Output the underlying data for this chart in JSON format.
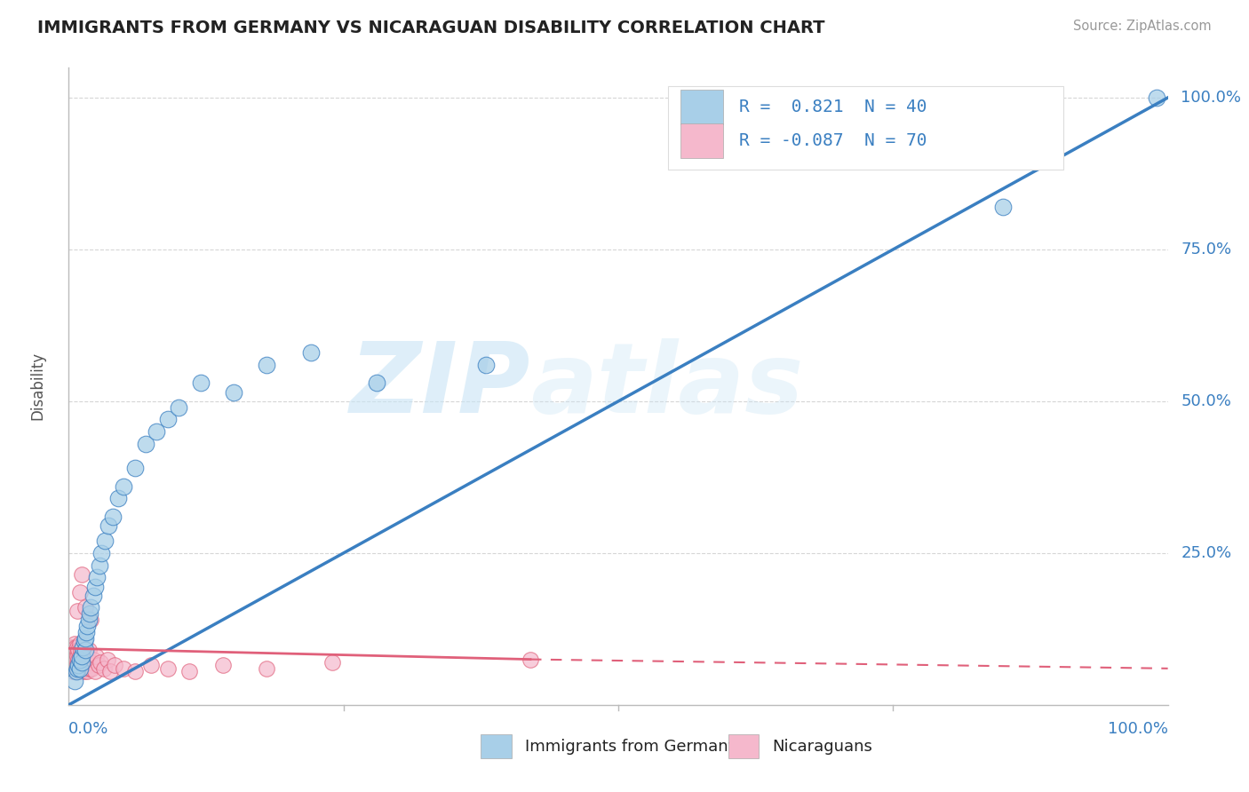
{
  "title": "IMMIGRANTS FROM GERMANY VS NICARAGUAN DISABILITY CORRELATION CHART",
  "source": "Source: ZipAtlas.com",
  "ylabel": "Disability",
  "right_yticklabels": [
    "25.0%",
    "50.0%",
    "75.0%",
    "100.0%"
  ],
  "right_yticks": [
    0.25,
    0.5,
    0.75,
    1.0
  ],
  "legend_blue_r": "0.821",
  "legend_blue_n": "40",
  "legend_pink_r": "-0.087",
  "legend_pink_n": "70",
  "legend_blue_label": "Immigrants from Germany",
  "legend_pink_label": "Nicaraguans",
  "watermark_zip": "ZIP",
  "watermark_atlas": "atlas",
  "blue_color": "#a8cfe8",
  "pink_color": "#f5b8cc",
  "blue_line_color": "#3a7fc1",
  "pink_line_color": "#e0607a",
  "background_color": "#ffffff",
  "blue_scatter_x": [
    0.005,
    0.007,
    0.008,
    0.009,
    0.01,
    0.01,
    0.012,
    0.012,
    0.013,
    0.014,
    0.015,
    0.015,
    0.016,
    0.017,
    0.018,
    0.019,
    0.02,
    0.022,
    0.024,
    0.026,
    0.028,
    0.03,
    0.033,
    0.036,
    0.04,
    0.045,
    0.05,
    0.06,
    0.07,
    0.08,
    0.09,
    0.1,
    0.12,
    0.15,
    0.18,
    0.22,
    0.28,
    0.38,
    0.85,
    0.99
  ],
  "blue_scatter_y": [
    0.04,
    0.055,
    0.06,
    0.065,
    0.06,
    0.075,
    0.07,
    0.08,
    0.095,
    0.105,
    0.09,
    0.11,
    0.12,
    0.13,
    0.14,
    0.15,
    0.16,
    0.18,
    0.195,
    0.21,
    0.23,
    0.25,
    0.27,
    0.295,
    0.31,
    0.34,
    0.36,
    0.39,
    0.43,
    0.45,
    0.47,
    0.49,
    0.53,
    0.515,
    0.56,
    0.58,
    0.53,
    0.56,
    0.82,
    1.0
  ],
  "pink_scatter_x": [
    0.001,
    0.002,
    0.002,
    0.003,
    0.003,
    0.003,
    0.004,
    0.004,
    0.004,
    0.005,
    0.005,
    0.005,
    0.006,
    0.006,
    0.006,
    0.007,
    0.007,
    0.007,
    0.008,
    0.008,
    0.008,
    0.009,
    0.009,
    0.009,
    0.01,
    0.01,
    0.01,
    0.011,
    0.011,
    0.011,
    0.012,
    0.012,
    0.013,
    0.013,
    0.014,
    0.014,
    0.015,
    0.015,
    0.016,
    0.016,
    0.017,
    0.017,
    0.018,
    0.018,
    0.019,
    0.02,
    0.021,
    0.022,
    0.024,
    0.025,
    0.027,
    0.029,
    0.032,
    0.035,
    0.038,
    0.042,
    0.05,
    0.06,
    0.075,
    0.09,
    0.11,
    0.14,
    0.18,
    0.24,
    0.42,
    0.008,
    0.01,
    0.012,
    0.015,
    0.02
  ],
  "pink_scatter_y": [
    0.075,
    0.06,
    0.085,
    0.065,
    0.08,
    0.095,
    0.055,
    0.075,
    0.09,
    0.06,
    0.075,
    0.1,
    0.065,
    0.08,
    0.095,
    0.055,
    0.075,
    0.09,
    0.065,
    0.08,
    0.095,
    0.06,
    0.075,
    0.09,
    0.065,
    0.08,
    0.1,
    0.055,
    0.075,
    0.09,
    0.065,
    0.08,
    0.06,
    0.075,
    0.055,
    0.08,
    0.065,
    0.09,
    0.06,
    0.075,
    0.055,
    0.08,
    0.065,
    0.09,
    0.06,
    0.07,
    0.06,
    0.075,
    0.055,
    0.08,
    0.065,
    0.07,
    0.06,
    0.075,
    0.055,
    0.065,
    0.06,
    0.055,
    0.065,
    0.06,
    0.055,
    0.065,
    0.06,
    0.07,
    0.075,
    0.155,
    0.185,
    0.215,
    0.16,
    0.14
  ],
  "grid_color": "#cccccc"
}
